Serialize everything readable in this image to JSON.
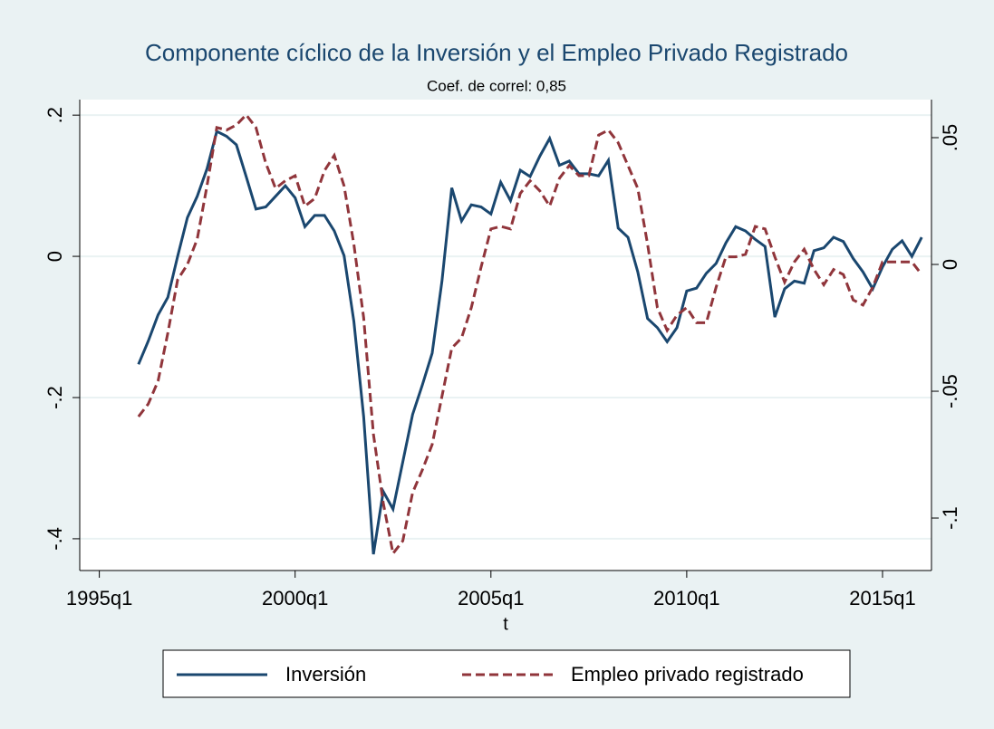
{
  "chart_data": {
    "type": "line",
    "title": "Componente cíclico de la Inversión y el Empleo Privado Registrado",
    "subtitle": "Coef. de correl: 0,85",
    "xlabel": "t",
    "x": [
      "1996q1",
      "1996q2",
      "1996q3",
      "1996q4",
      "1997q1",
      "1997q2",
      "1997q3",
      "1997q4",
      "1998q1",
      "1998q2",
      "1998q3",
      "1998q4",
      "1999q1",
      "1999q2",
      "1999q3",
      "1999q4",
      "2000q1",
      "2000q2",
      "2000q3",
      "2000q4",
      "2001q1",
      "2001q2",
      "2001q3",
      "2001q4",
      "2002q1",
      "2002q2",
      "2002q3",
      "2002q4",
      "2003q1",
      "2003q2",
      "2003q3",
      "2003q4",
      "2004q1",
      "2004q2",
      "2004q3",
      "2004q4",
      "2005q1",
      "2005q2",
      "2005q3",
      "2005q4",
      "2006q1",
      "2006q2",
      "2006q3",
      "2006q4",
      "2007q1",
      "2007q2",
      "2007q3",
      "2007q4",
      "2008q1",
      "2008q2",
      "2008q3",
      "2008q4",
      "2009q1",
      "2009q2",
      "2009q3",
      "2009q4",
      "2010q1",
      "2010q2",
      "2010q3",
      "2010q4",
      "2011q1",
      "2011q2",
      "2011q3",
      "2011q4",
      "2012q1",
      "2012q2",
      "2012q3",
      "2012q4",
      "2013q1",
      "2013q2",
      "2013q3",
      "2013q4",
      "2014q1",
      "2014q2",
      "2014q3",
      "2014q4",
      "2015q1",
      "2015q2",
      "2015q3",
      "2015q4",
      "2016q1"
    ],
    "series": [
      {
        "name": "Inversión",
        "color": "#1a476f",
        "dash": "solid",
        "values": [
          -0.153,
          -0.12,
          -0.083,
          -0.058,
          0.0,
          0.055,
          0.085,
          0.124,
          0.177,
          0.17,
          0.158,
          0.113,
          0.067,
          0.07,
          0.085,
          0.1,
          0.083,
          0.042,
          0.058,
          0.058,
          0.036,
          0.001,
          -0.092,
          -0.227,
          -0.422,
          -0.333,
          -0.358,
          -0.291,
          -0.224,
          -0.182,
          -0.137,
          -0.035,
          0.097,
          0.05,
          0.073,
          0.07,
          0.06,
          0.105,
          0.079,
          0.122,
          0.113,
          0.142,
          0.167,
          0.129,
          0.135,
          0.117,
          0.117,
          0.114,
          0.136,
          0.04,
          0.027,
          -0.022,
          -0.088,
          -0.101,
          -0.121,
          -0.101,
          -0.049,
          -0.045,
          -0.024,
          -0.01,
          0.019,
          0.042,
          0.036,
          0.024,
          0.014,
          -0.086,
          -0.046,
          -0.035,
          -0.038,
          0.008,
          0.012,
          0.027,
          0.021,
          -0.003,
          -0.022,
          -0.046,
          -0.015,
          0.01,
          0.022,
          0.0,
          0.027
        ]
      },
      {
        "name": "Empleo privado registrado",
        "color": "#90353b",
        "dash": "dashed",
        "axis": "y2",
        "values": [
          -0.06,
          -0.055,
          -0.046,
          -0.027,
          -0.006,
          0.0,
          0.01,
          0.031,
          0.054,
          0.053,
          0.055,
          0.059,
          0.054,
          0.04,
          0.03,
          0.033,
          0.035,
          0.023,
          0.026,
          0.037,
          0.043,
          0.031,
          0.008,
          -0.021,
          -0.067,
          -0.094,
          -0.114,
          -0.109,
          -0.09,
          -0.081,
          -0.071,
          -0.052,
          -0.033,
          -0.029,
          -0.017,
          -0.001,
          0.014,
          0.015,
          0.014,
          0.028,
          0.033,
          0.029,
          0.023,
          0.034,
          0.039,
          0.035,
          0.035,
          0.051,
          0.053,
          0.048,
          0.039,
          0.03,
          0.008,
          -0.017,
          -0.026,
          -0.02,
          -0.017,
          -0.023,
          -0.023,
          -0.009,
          0.003,
          0.003,
          0.004,
          0.015,
          0.014,
          0.003,
          -0.007,
          0.001,
          0.006,
          -0.002,
          -0.008,
          -0.002,
          -0.004,
          -0.014,
          -0.016,
          -0.009,
          0.001,
          0.001,
          0.001,
          0.001,
          -0.004
        ]
      }
    ],
    "xlim": [
      "1994q3",
      "2016q2"
    ],
    "xticks": [
      "1995q1",
      "2000q1",
      "2005q1",
      "2010q1",
      "2015q1"
    ],
    "ylim": [
      -0.445,
      0.222
    ],
    "yticks": [
      {
        "value": 0.2,
        "label": ".2"
      },
      0,
      {
        "value": -0.2,
        "label": "-.2"
      },
      {
        "value": -0.4,
        "label": "-.4"
      }
    ],
    "y2lim": [
      -0.1207,
      0.065
    ],
    "y2ticks": [
      {
        "value": 0.05,
        "label": ".05"
      },
      0,
      {
        "value": -0.05,
        "label": "-.05"
      },
      {
        "value": -0.1,
        "label": "-.1"
      }
    ],
    "grid": true,
    "legend": "bottom"
  }
}
